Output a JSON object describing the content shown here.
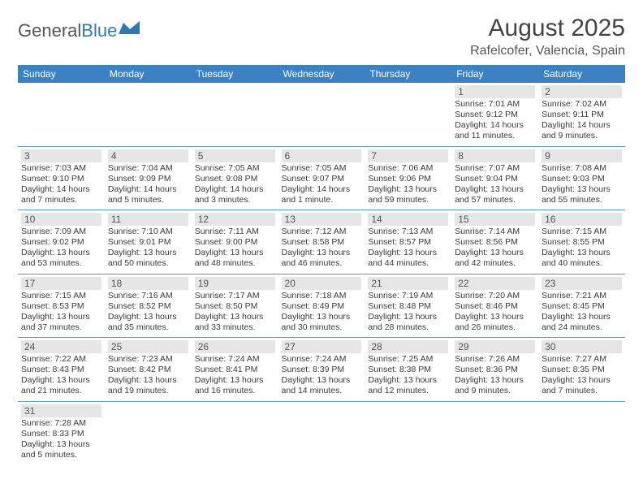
{
  "logo": {
    "text1": "General",
    "text2": "Blue"
  },
  "title": "August 2025",
  "location": "Rafelcofer, Valencia, Spain",
  "colors": {
    "header_bg": "#3a82c4",
    "header_text": "#ffffff",
    "daynum_bg": "#e6e6e6",
    "border": "#5a93c5"
  },
  "weekdays": [
    "Sunday",
    "Monday",
    "Tuesday",
    "Wednesday",
    "Thursday",
    "Friday",
    "Saturday"
  ],
  "weeks": [
    [
      {
        "n": "",
        "sr": "",
        "ss": "",
        "dl": ""
      },
      {
        "n": "",
        "sr": "",
        "ss": "",
        "dl": ""
      },
      {
        "n": "",
        "sr": "",
        "ss": "",
        "dl": ""
      },
      {
        "n": "",
        "sr": "",
        "ss": "",
        "dl": ""
      },
      {
        "n": "",
        "sr": "",
        "ss": "",
        "dl": ""
      },
      {
        "n": "1",
        "sr": "Sunrise: 7:01 AM",
        "ss": "Sunset: 9:12 PM",
        "dl": "Daylight: 14 hours and 11 minutes."
      },
      {
        "n": "2",
        "sr": "Sunrise: 7:02 AM",
        "ss": "Sunset: 9:11 PM",
        "dl": "Daylight: 14 hours and 9 minutes."
      }
    ],
    [
      {
        "n": "3",
        "sr": "Sunrise: 7:03 AM",
        "ss": "Sunset: 9:10 PM",
        "dl": "Daylight: 14 hours and 7 minutes."
      },
      {
        "n": "4",
        "sr": "Sunrise: 7:04 AM",
        "ss": "Sunset: 9:09 PM",
        "dl": "Daylight: 14 hours and 5 minutes."
      },
      {
        "n": "5",
        "sr": "Sunrise: 7:05 AM",
        "ss": "Sunset: 9:08 PM",
        "dl": "Daylight: 14 hours and 3 minutes."
      },
      {
        "n": "6",
        "sr": "Sunrise: 7:05 AM",
        "ss": "Sunset: 9:07 PM",
        "dl": "Daylight: 14 hours and 1 minute."
      },
      {
        "n": "7",
        "sr": "Sunrise: 7:06 AM",
        "ss": "Sunset: 9:06 PM",
        "dl": "Daylight: 13 hours and 59 minutes."
      },
      {
        "n": "8",
        "sr": "Sunrise: 7:07 AM",
        "ss": "Sunset: 9:04 PM",
        "dl": "Daylight: 13 hours and 57 minutes."
      },
      {
        "n": "9",
        "sr": "Sunrise: 7:08 AM",
        "ss": "Sunset: 9:03 PM",
        "dl": "Daylight: 13 hours and 55 minutes."
      }
    ],
    [
      {
        "n": "10",
        "sr": "Sunrise: 7:09 AM",
        "ss": "Sunset: 9:02 PM",
        "dl": "Daylight: 13 hours and 53 minutes."
      },
      {
        "n": "11",
        "sr": "Sunrise: 7:10 AM",
        "ss": "Sunset: 9:01 PM",
        "dl": "Daylight: 13 hours and 50 minutes."
      },
      {
        "n": "12",
        "sr": "Sunrise: 7:11 AM",
        "ss": "Sunset: 9:00 PM",
        "dl": "Daylight: 13 hours and 48 minutes."
      },
      {
        "n": "13",
        "sr": "Sunrise: 7:12 AM",
        "ss": "Sunset: 8:58 PM",
        "dl": "Daylight: 13 hours and 46 minutes."
      },
      {
        "n": "14",
        "sr": "Sunrise: 7:13 AM",
        "ss": "Sunset: 8:57 PM",
        "dl": "Daylight: 13 hours and 44 minutes."
      },
      {
        "n": "15",
        "sr": "Sunrise: 7:14 AM",
        "ss": "Sunset: 8:56 PM",
        "dl": "Daylight: 13 hours and 42 minutes."
      },
      {
        "n": "16",
        "sr": "Sunrise: 7:15 AM",
        "ss": "Sunset: 8:55 PM",
        "dl": "Daylight: 13 hours and 40 minutes."
      }
    ],
    [
      {
        "n": "17",
        "sr": "Sunrise: 7:15 AM",
        "ss": "Sunset: 8:53 PM",
        "dl": "Daylight: 13 hours and 37 minutes."
      },
      {
        "n": "18",
        "sr": "Sunrise: 7:16 AM",
        "ss": "Sunset: 8:52 PM",
        "dl": "Daylight: 13 hours and 35 minutes."
      },
      {
        "n": "19",
        "sr": "Sunrise: 7:17 AM",
        "ss": "Sunset: 8:50 PM",
        "dl": "Daylight: 13 hours and 33 minutes."
      },
      {
        "n": "20",
        "sr": "Sunrise: 7:18 AM",
        "ss": "Sunset: 8:49 PM",
        "dl": "Daylight: 13 hours and 30 minutes."
      },
      {
        "n": "21",
        "sr": "Sunrise: 7:19 AM",
        "ss": "Sunset: 8:48 PM",
        "dl": "Daylight: 13 hours and 28 minutes."
      },
      {
        "n": "22",
        "sr": "Sunrise: 7:20 AM",
        "ss": "Sunset: 8:46 PM",
        "dl": "Daylight: 13 hours and 26 minutes."
      },
      {
        "n": "23",
        "sr": "Sunrise: 7:21 AM",
        "ss": "Sunset: 8:45 PM",
        "dl": "Daylight: 13 hours and 24 minutes."
      }
    ],
    [
      {
        "n": "24",
        "sr": "Sunrise: 7:22 AM",
        "ss": "Sunset: 8:43 PM",
        "dl": "Daylight: 13 hours and 21 minutes."
      },
      {
        "n": "25",
        "sr": "Sunrise: 7:23 AM",
        "ss": "Sunset: 8:42 PM",
        "dl": "Daylight: 13 hours and 19 minutes."
      },
      {
        "n": "26",
        "sr": "Sunrise: 7:24 AM",
        "ss": "Sunset: 8:41 PM",
        "dl": "Daylight: 13 hours and 16 minutes."
      },
      {
        "n": "27",
        "sr": "Sunrise: 7:24 AM",
        "ss": "Sunset: 8:39 PM",
        "dl": "Daylight: 13 hours and 14 minutes."
      },
      {
        "n": "28",
        "sr": "Sunrise: 7:25 AM",
        "ss": "Sunset: 8:38 PM",
        "dl": "Daylight: 13 hours and 12 minutes."
      },
      {
        "n": "29",
        "sr": "Sunrise: 7:26 AM",
        "ss": "Sunset: 8:36 PM",
        "dl": "Daylight: 13 hours and 9 minutes."
      },
      {
        "n": "30",
        "sr": "Sunrise: 7:27 AM",
        "ss": "Sunset: 8:35 PM",
        "dl": "Daylight: 13 hours and 7 minutes."
      }
    ],
    [
      {
        "n": "31",
        "sr": "Sunrise: 7:28 AM",
        "ss": "Sunset: 8:33 PM",
        "dl": "Daylight: 13 hours and 5 minutes."
      },
      {
        "n": "",
        "sr": "",
        "ss": "",
        "dl": ""
      },
      {
        "n": "",
        "sr": "",
        "ss": "",
        "dl": ""
      },
      {
        "n": "",
        "sr": "",
        "ss": "",
        "dl": ""
      },
      {
        "n": "",
        "sr": "",
        "ss": "",
        "dl": ""
      },
      {
        "n": "",
        "sr": "",
        "ss": "",
        "dl": ""
      },
      {
        "n": "",
        "sr": "",
        "ss": "",
        "dl": ""
      }
    ]
  ]
}
